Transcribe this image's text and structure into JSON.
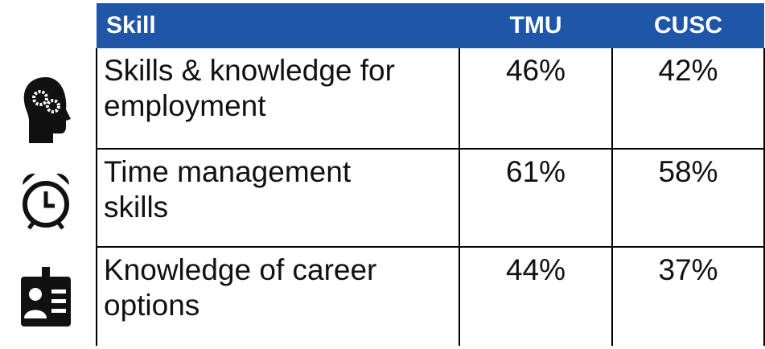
{
  "table": {
    "header": [
      "Skill",
      "TMU",
      "CUSC"
    ],
    "rows": [
      [
        "Skills & knowledge for employment",
        "46%",
        "42%"
      ],
      [
        "Time management skills",
        "61%",
        "58%"
      ],
      [
        "Knowledge of career options",
        "44%",
        "37%"
      ]
    ]
  }
}
